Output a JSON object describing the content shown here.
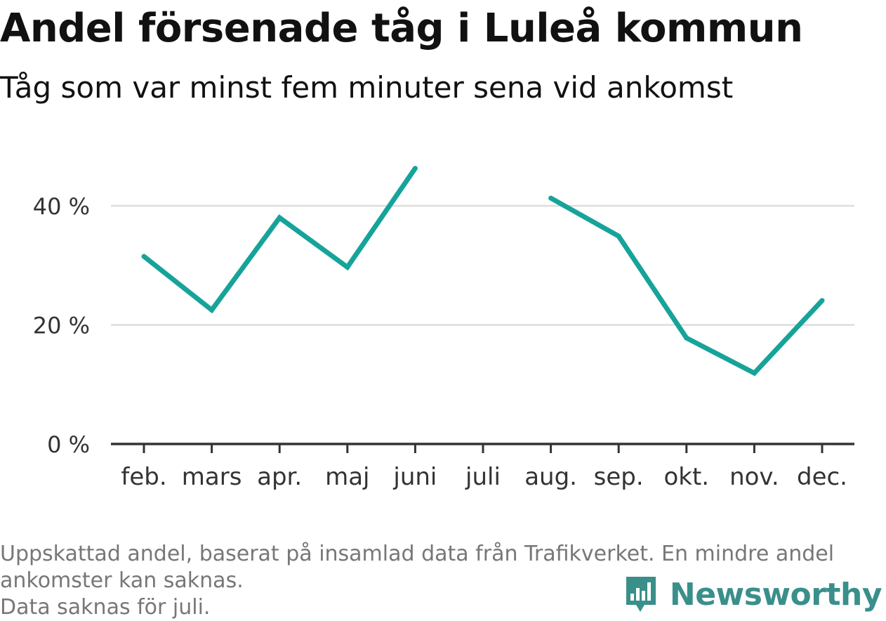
{
  "header": {
    "title": "Andel försenade tåg i Luleå kommun",
    "subtitle": "Tåg som var minst fem minuter sena vid ankomst"
  },
  "footer": {
    "note_line1": "Uppskattad andel, baserat på insamlad data från Trafikverket. En mindre andel",
    "note_line2": "ankomster kan saknas.",
    "note_line3": "Data saknas för juli.",
    "brand": "Newsworthy"
  },
  "colors": {
    "line": "#16a39a",
    "grid": "#dddddd",
    "axis": "#333333",
    "brand": "#3a8f8b"
  },
  "chart_data": {
    "type": "line",
    "categories": [
      "feb.",
      "mars",
      "apr.",
      "maj",
      "juni",
      "juli",
      "aug.",
      "sep.",
      "okt.",
      "nov.",
      "dec."
    ],
    "series": [
      {
        "values": [
          31.5,
          22.5,
          38,
          29.7,
          46.3,
          null,
          41.3,
          34.9,
          17.8,
          11.9,
          24.1
        ]
      }
    ],
    "ylim": [
      0,
      50
    ],
    "yticks": [
      0,
      20,
      40
    ],
    "ytick_labels": [
      "0 %",
      "20 %",
      "40 %"
    ],
    "grid": true
  }
}
